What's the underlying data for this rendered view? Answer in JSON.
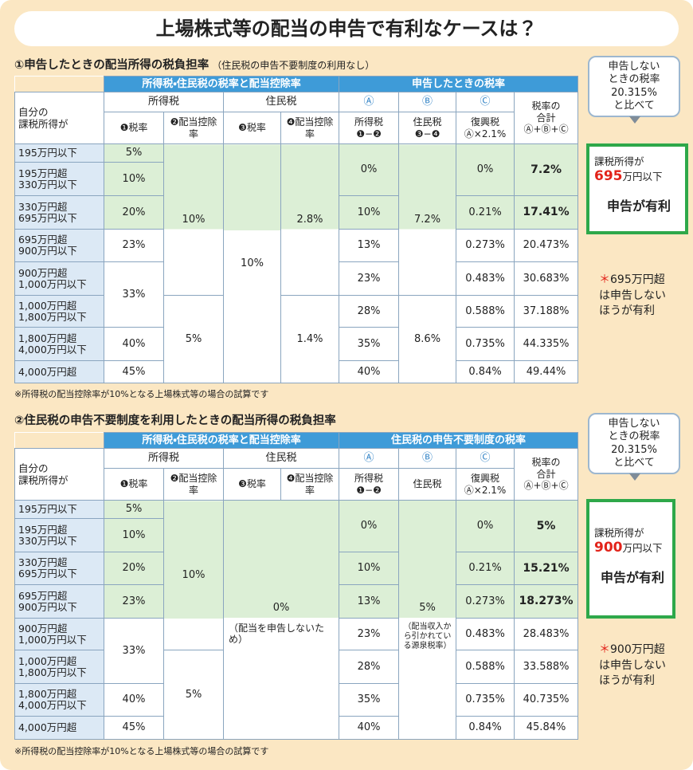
{
  "title": "上場株式等の配当の申告で有利なケースは？",
  "sections": [
    {
      "heading": "①申告したときの配当所得の税負担率",
      "subheading": "（住民税の申告不要制度の利用なし）",
      "table": {
        "group_headers": [
          "所得税・住民税の税率と配当控除率",
          "申告したときの税率"
        ],
        "row_label_header": "自分の\n課税所得が",
        "sub_headers": [
          "所得税",
          "住民税",
          "Ⓐ",
          "Ⓑ",
          "Ⓒ"
        ],
        "col_headers": [
          "❶税率",
          "❷配当控除率",
          "❸税率",
          "❹配当控除率",
          "所得税\n❶−❷",
          "住民税\n❸−❹",
          "復興税\nⒶ×2.1%",
          "税率の\n合計\nⒶ+Ⓑ+Ⓒ"
        ],
        "row_labels": [
          "195万円以下",
          "195万円超\n330万円以下",
          "330万円超\n695万円以下",
          "695万円超\n900万円以下",
          "900万円超\n1,000万円以下",
          "1,000万円超\n1,800万円以下",
          "1,800万円超\n4,000万円以下",
          "4,000万円超"
        ],
        "income_tax_rate": [
          "5%",
          "10%",
          "20%",
          "23%",
          "33%",
          "40%",
          "45%"
        ],
        "income_tax_credit": [
          "10%",
          "5%"
        ],
        "resident_tax_rate": [
          "10%"
        ],
        "resident_tax_credit": [
          "2.8%",
          "1.4%"
        ],
        "a": [
          "0%",
          "10%",
          "13%",
          "23%",
          "28%",
          "35%",
          "40%"
        ],
        "b": [
          "7.2%",
          "8.6%"
        ],
        "c": [
          "0%",
          "0.21%",
          "0.273%",
          "0.483%",
          "0.588%",
          "0.735%",
          "0.84%"
        ],
        "total": [
          "7.2%",
          "17.41%",
          "20.473%",
          "30.683%",
          "37.188%",
          "44.335%",
          "49.44%"
        ]
      },
      "footnote": "※所得税の配当控除率が10%となる上場株式等の場合の試算です",
      "callout": "申告しない\nときの税率\n20.315%\nと比べて",
      "highlight": {
        "prefix": "課税所得が",
        "amount": "695",
        "suffix": "万円以下",
        "conclusion": "申告が有利"
      },
      "note": {
        "mark": "＊",
        "text": "695万円超は申告しないほうが有利"
      }
    },
    {
      "heading": "②住民税の申告不要制度を利用したときの配当所得の税負担率",
      "table": {
        "group_headers": [
          "所得税・住民税の税率と配当控除率",
          "住民税の申告不要制度の税率"
        ],
        "row_label_header": "自分の\n課税所得が",
        "sub_headers": [
          "所得税",
          "住民税",
          "Ⓐ",
          "Ⓑ",
          "Ⓒ"
        ],
        "col_headers": [
          "❶税率",
          "❷配当控除率",
          "❸税率",
          "❹配当控除率",
          "所得税\n❶−❷",
          "住民税",
          "復興税\nⒶ×2.1%",
          "税率の\n合計\nⒶ+Ⓑ+Ⓒ"
        ],
        "row_labels": [
          "195万円以下",
          "195万円超\n330万円以下",
          "330万円超\n695万円以下",
          "695万円超\n900万円以下",
          "900万円超\n1,000万円以下",
          "1,000万円超\n1,800万円以下",
          "1,800万円超\n4,000万円以下",
          "4,000万円超"
        ],
        "income_tax_rate": [
          "5%",
          "10%",
          "20%",
          "23%",
          "33%",
          "40%",
          "45%"
        ],
        "income_tax_credit": [
          "10%",
          "5%"
        ],
        "resident_tax": "0%",
        "resident_tax_note": "（配当を申告しないため）",
        "a": [
          "0%",
          "10%",
          "13%",
          "23%",
          "28%",
          "35%",
          "40%"
        ],
        "b": "5%",
        "b_note": "（配当収入から引かれている源泉税率）",
        "c": [
          "0%",
          "0.21%",
          "0.273%",
          "0.483%",
          "0.588%",
          "0.735%",
          "0.84%"
        ],
        "total": [
          "5%",
          "15.21%",
          "18.273%",
          "28.483%",
          "33.588%",
          "40.735%",
          "45.84%"
        ]
      },
      "footnote": "※所得税の配当控除率が10%となる上場株式等の場合の試算です",
      "callout": "申告しない\nときの税率\n20.315%\nと比べて",
      "highlight": {
        "prefix": "課税所得が",
        "amount": "900",
        "suffix": "万円以下",
        "conclusion": "申告が有利"
      },
      "note": {
        "mark": "＊",
        "text": "900万円超は申告しないほうが有利"
      }
    }
  ]
}
